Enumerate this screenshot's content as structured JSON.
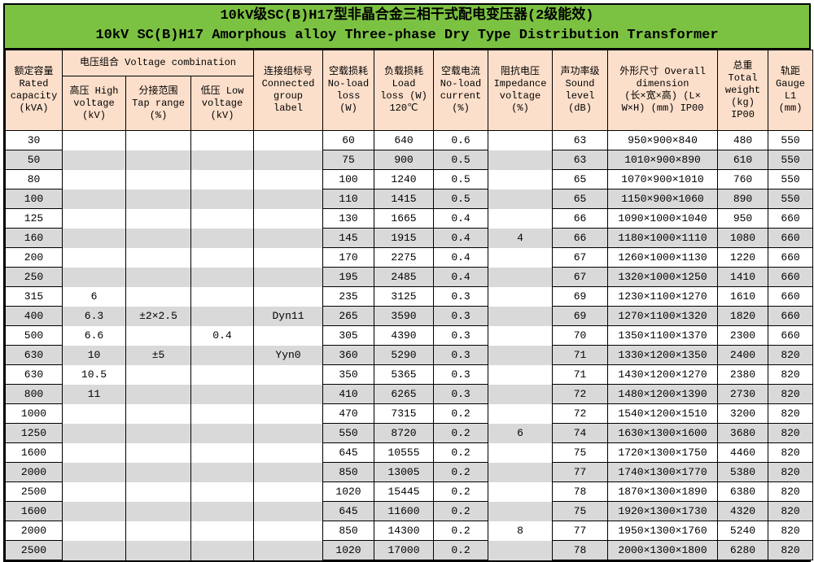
{
  "title": {
    "line1": "10kV级SC(B)H17型非晶合金三相干式配电变压器(2级能效)",
    "line2": "10kV SC(B)H17 Amorphous alloy Three-phase Dry Type Distribution Transformer"
  },
  "colors": {
    "title_bg": "#7cc242",
    "header_bg": "#fcdfcb",
    "stripe": "#d9d9d9",
    "border": "#000000"
  },
  "table": {
    "group_header": "电压组合 Voltage combination",
    "headers": {
      "capacity": "额定容量\nRated\ncapacity\n(kVA)",
      "hv": "高压 High\nvoltage\n(kV)",
      "tap": "分接范围\nTap range\n(%)",
      "lv": "低压 Low\nvoltage\n(kV)",
      "conn": "连接组标号\nConnected\ngroup\nlabel",
      "no_load_loss": "空载损耗\nNo-load\nloss\n(W)",
      "load_loss": "负载损耗\nLoad\nloss (W)\n120℃",
      "no_load_current": "空载电流\nNo-load\ncurrent\n(%)",
      "impedance": "阻抗电压\nImpedance\nvoltage\n(%)",
      "sound": "声功率级\nSound\nlevel\n(dB)",
      "dimension": "外形尺寸 Overall\ndimension\n(长×宽×高) (L×\nW×H) (mm) IP00",
      "weight": "总重\nTotal\nweight\n(kg)\nIP00",
      "gauge": "轨距\nGauge\nL1\n(mm)"
    },
    "rows": [
      [
        "30",
        "",
        "",
        "",
        "",
        "60",
        "640",
        "0.6",
        "",
        "63",
        "950×900×840",
        "480",
        "550"
      ],
      [
        "50",
        "",
        "",
        "",
        "",
        "75",
        "900",
        "0.5",
        "",
        "63",
        "1010×900×890",
        "610",
        "550"
      ],
      [
        "80",
        "",
        "",
        "",
        "",
        "100",
        "1240",
        "0.5",
        "",
        "65",
        "1070×900×1010",
        "760",
        "550"
      ],
      [
        "100",
        "",
        "",
        "",
        "",
        "110",
        "1415",
        "0.5",
        "",
        "65",
        "1150×900×1060",
        "890",
        "550"
      ],
      [
        "125",
        "",
        "",
        "",
        "",
        "130",
        "1665",
        "0.4",
        "",
        "66",
        "1090×1000×1040",
        "950",
        "660"
      ],
      [
        "160",
        "",
        "",
        "",
        "",
        "145",
        "1915",
        "0.4",
        "4",
        "66",
        "1180×1000×1110",
        "1080",
        "660"
      ],
      [
        "200",
        "",
        "",
        "",
        "",
        "170",
        "2275",
        "0.4",
        "",
        "67",
        "1260×1000×1130",
        "1220",
        "660"
      ],
      [
        "250",
        "",
        "",
        "",
        "",
        "195",
        "2485",
        "0.4",
        "",
        "67",
        "1320×1000×1250",
        "1410",
        "660"
      ],
      [
        "315",
        "6",
        "",
        "",
        "",
        "235",
        "3125",
        "0.3",
        "",
        "69",
        "1230×1100×1270",
        "1610",
        "660"
      ],
      [
        "400",
        "6.3",
        "±2×2.5",
        "",
        "Dyn11",
        "265",
        "3590",
        "0.3",
        "",
        "69",
        "1270×1100×1320",
        "1820",
        "660"
      ],
      [
        "500",
        "6.6",
        "",
        "0.4",
        "",
        "305",
        "4390",
        "0.3",
        "",
        "70",
        "1350×1100×1370",
        "2300",
        "660"
      ],
      [
        "630",
        "10",
        "±5",
        "",
        "Yyn0",
        "360",
        "5290",
        "0.3",
        "",
        "71",
        "1330×1200×1350",
        "2400",
        "820"
      ],
      [
        "630",
        "10.5",
        "",
        "",
        "",
        "350",
        "5365",
        "0.3",
        "",
        "71",
        "1430×1200×1270",
        "2380",
        "820"
      ],
      [
        "800",
        "11",
        "",
        "",
        "",
        "410",
        "6265",
        "0.3",
        "",
        "72",
        "1480×1200×1390",
        "2730",
        "820"
      ],
      [
        "1000",
        "",
        "",
        "",
        "",
        "470",
        "7315",
        "0.2",
        "",
        "72",
        "1540×1200×1510",
        "3200",
        "820"
      ],
      [
        "1250",
        "",
        "",
        "",
        "",
        "550",
        "8720",
        "0.2",
        "6",
        "74",
        "1630×1300×1600",
        "3680",
        "820"
      ],
      [
        "1600",
        "",
        "",
        "",
        "",
        "645",
        "10555",
        "0.2",
        "",
        "75",
        "1720×1300×1750",
        "4460",
        "820"
      ],
      [
        "2000",
        "",
        "",
        "",
        "",
        "850",
        "13005",
        "0.2",
        "",
        "77",
        "1740×1300×1770",
        "5380",
        "820"
      ],
      [
        "2500",
        "",
        "",
        "",
        "",
        "1020",
        "15445",
        "0.2",
        "",
        "78",
        "1870×1300×1890",
        "6380",
        "820"
      ],
      [
        "1600",
        "",
        "",
        "",
        "",
        "645",
        "11600",
        "0.2",
        "",
        "75",
        "1920×1300×1730",
        "4320",
        "820"
      ],
      [
        "2000",
        "",
        "",
        "",
        "",
        "850",
        "14300",
        "0.2",
        "8",
        "77",
        "1950×1300×1760",
        "5240",
        "820"
      ],
      [
        "2500",
        "",
        "",
        "",
        "",
        "1020",
        "17000",
        "0.2",
        "",
        "78",
        "2000×1300×1800",
        "6280",
        "820"
      ]
    ]
  }
}
